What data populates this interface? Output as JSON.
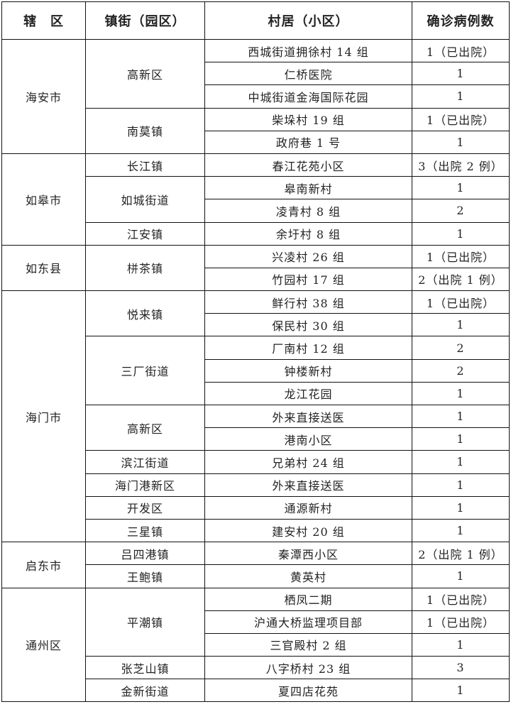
{
  "headers": [
    "辖　区",
    "镇街（园区）",
    "村居（小区）",
    "确诊病例数"
  ],
  "districts": [
    {
      "name": "海安市",
      "towns": [
        {
          "name": "高新区",
          "places": [
            {
              "name": "西城街道拥徐村 14 组",
              "cases": "1（已出院）"
            },
            {
              "name": "仁桥医院",
              "cases": "1"
            },
            {
              "name": "中城街道金海国际花园",
              "cases": "1"
            }
          ]
        },
        {
          "name": "南莫镇",
          "places": [
            {
              "name": "柴垛村 19 组",
              "cases": "1（已出院）"
            },
            {
              "name": "政府巷 1 号",
              "cases": "1"
            }
          ]
        }
      ]
    },
    {
      "name": "如皋市",
      "towns": [
        {
          "name": "长江镇",
          "places": [
            {
              "name": "春江花苑小区",
              "cases": "3（出院 2 例）"
            }
          ]
        },
        {
          "name": "如城街道",
          "places": [
            {
              "name": "皋南新村",
              "cases": "1"
            },
            {
              "name": "凌青村 8 组",
              "cases": "2"
            }
          ]
        },
        {
          "name": "江安镇",
          "places": [
            {
              "name": "余圩村 8 组",
              "cases": "1"
            }
          ]
        }
      ]
    },
    {
      "name": "如东县",
      "towns": [
        {
          "name": "栟茶镇",
          "places": [
            {
              "name": "兴凌村 26 组",
              "cases": "1（已出院）"
            },
            {
              "name": "竹园村 17 组",
              "cases": "2（出院 1 例）"
            }
          ]
        }
      ]
    },
    {
      "name": "海门市",
      "towns": [
        {
          "name": "悦来镇",
          "places": [
            {
              "name": "鲜行村 38 组",
              "cases": "1（已出院）"
            },
            {
              "name": "保民村 30 组",
              "cases": "1"
            }
          ]
        },
        {
          "name": "三厂街道",
          "places": [
            {
              "name": "厂南村 12 组",
              "cases": "2"
            },
            {
              "name": "钟楼新村",
              "cases": "2"
            },
            {
              "name": "龙江花园",
              "cases": "1"
            }
          ]
        },
        {
          "name": "高新区",
          "places": [
            {
              "name": "外来直接送医",
              "cases": "1"
            },
            {
              "name": "港南小区",
              "cases": "1"
            }
          ]
        },
        {
          "name": "滨江街道",
          "places": [
            {
              "name": "兄弟村 24 组",
              "cases": "1"
            }
          ]
        },
        {
          "name": "海门港新区",
          "places": [
            {
              "name": "外来直接送医",
              "cases": "1"
            }
          ]
        },
        {
          "name": "开发区",
          "places": [
            {
              "name": "通源新村",
              "cases": "1"
            }
          ]
        },
        {
          "name": "三星镇",
          "places": [
            {
              "name": "建安村 20 组",
              "cases": "1"
            }
          ]
        }
      ]
    },
    {
      "name": "启东市",
      "towns": [
        {
          "name": "吕四港镇",
          "places": [
            {
              "name": "秦潭西小区",
              "cases": "2（出院 1 例）"
            }
          ]
        },
        {
          "name": "王鲍镇",
          "places": [
            {
              "name": "黄英村",
              "cases": "1"
            }
          ]
        }
      ]
    },
    {
      "name": "通州区",
      "towns": [
        {
          "name": "平潮镇",
          "places": [
            {
              "name": "栖凤二期",
              "cases": "1（已出院）"
            },
            {
              "name": "沪通大桥监理项目部",
              "cases": "1（已出院）"
            },
            {
              "name": "三官殿村 2 组",
              "cases": "1"
            }
          ]
        },
        {
          "name": "张芝山镇",
          "places": [
            {
              "name": "八字桥村 23 组",
              "cases": "3"
            }
          ]
        },
        {
          "name": "金新街道",
          "places": [
            {
              "name": "夏四店花苑",
              "cases": "1"
            }
          ]
        }
      ]
    }
  ]
}
